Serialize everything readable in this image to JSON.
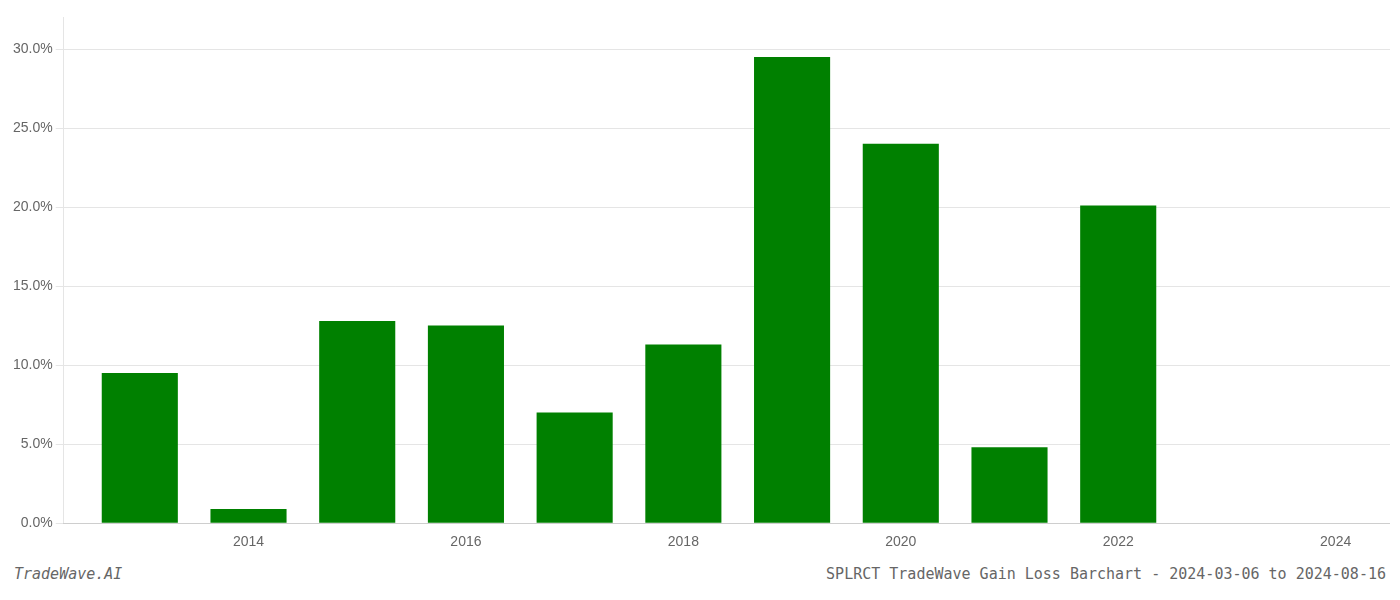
{
  "chart_data": {
    "type": "bar",
    "title": "SPLRCT TradeWave Gain Loss Barchart - 2024-03-06 to 2024-08-16",
    "annotations": [
      "TradeWave.AI"
    ],
    "x": [
      2013,
      2014,
      2015,
      2016,
      2017,
      2018,
      2019,
      2020,
      2021,
      2022,
      2023
    ],
    "values": [
      0.095,
      0.009,
      0.128,
      0.125,
      0.07,
      0.113,
      0.295,
      0.24,
      0.048,
      0.201,
      0.0
    ],
    "color": "#008000",
    "xlim": [
      2012.3,
      2024.5
    ],
    "xticks": [
      2014,
      2016,
      2018,
      2020,
      2022,
      2024
    ],
    "ylim": [
      0,
      0.32
    ],
    "yticks": [
      {
        "value": 0.0,
        "label": "0.0%"
      },
      {
        "value": 0.05,
        "label": "5.0%"
      },
      {
        "value": 0.1,
        "label": "10.0%"
      },
      {
        "value": 0.15,
        "label": "15.0%"
      },
      {
        "value": 0.2,
        "label": "20.0%"
      },
      {
        "value": 0.25,
        "label": "25.0%"
      },
      {
        "value": 0.3,
        "label": "30.0%"
      }
    ],
    "grid": true
  }
}
